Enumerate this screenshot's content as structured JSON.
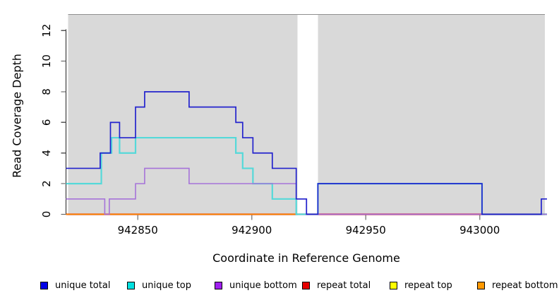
{
  "chart_data": {
    "type": "line",
    "subtype": "step-coverage",
    "title": "",
    "xlabel": "Coordinate in Reference Genome",
    "ylabel": "Read Coverage Depth",
    "xlim": [
      942818.5,
      943029.5
    ],
    "ylim": [
      0,
      13.3
    ],
    "x_ticks": [
      942850,
      942900,
      942950,
      943000
    ],
    "y_ticks": [
      0,
      2,
      4,
      6,
      8,
      10,
      12
    ],
    "grid": false,
    "legend_position": "bottom",
    "background": {
      "fill": "#d9d9d9",
      "top_value": 13.05,
      "border_color": "#8f8f8f",
      "regions": [
        [
          942819.5,
          942920
        ],
        [
          942929,
          943028.5
        ]
      ]
    },
    "series": [
      {
        "name": "unique total",
        "legend_color": "#0000e6",
        "line_color": "#2323cd",
        "line_width": 1.7,
        "steps": [
          [
            942818.5,
            3
          ],
          [
            942833.5,
            4
          ],
          [
            942838,
            6
          ],
          [
            942842,
            5
          ],
          [
            942849,
            7
          ],
          [
            942853,
            8
          ],
          [
            942872.5,
            7
          ],
          [
            942893,
            6
          ],
          [
            942896,
            5
          ],
          [
            942900.5,
            4
          ],
          [
            942909,
            3
          ],
          [
            942919.5,
            1
          ],
          [
            942924,
            0
          ],
          [
            942929,
            2
          ],
          [
            943001,
            0
          ],
          [
            943027,
            1
          ]
        ],
        "end": 943029.5
      },
      {
        "name": "unique top",
        "legend_color": "#00e0e0",
        "line_color": "#55d9d9",
        "line_width": 2.2,
        "steps": [
          [
            942818.5,
            2
          ],
          [
            942834,
            4
          ],
          [
            942838.5,
            5
          ],
          [
            942842,
            4
          ],
          [
            942849,
            5
          ],
          [
            942893,
            4
          ],
          [
            942896,
            3
          ],
          [
            942900.5,
            2
          ],
          [
            942909,
            1
          ],
          [
            942919.5,
            0
          ],
          [
            942929,
            2
          ],
          [
            943001,
            0
          ]
        ],
        "end": 943029.5
      },
      {
        "name": "unique bottom",
        "legend_color": "#a020f0",
        "line_color": "#a673d9",
        "line_width": 1.6,
        "steps": [
          [
            942818.5,
            1
          ],
          [
            942835.5,
            0
          ],
          [
            942837.5,
            1
          ],
          [
            942849,
            2
          ],
          [
            942853,
            3
          ],
          [
            942872.5,
            2
          ],
          [
            942919.5,
            1
          ],
          [
            942924,
            0
          ]
        ],
        "end": 943029.5
      },
      {
        "name": "repeat total",
        "legend_color": "#e60000",
        "line_color": "#dd2038",
        "line_width": 2.2,
        "steps": [
          [
            942818.5,
            0
          ]
        ],
        "end": 943029.5
      },
      {
        "name": "repeat top",
        "legend_color": "#ffff00",
        "line_color": "#f0f000",
        "line_width": 1.4,
        "steps": [
          [
            942818.5,
            0
          ]
        ],
        "end": 943029.5
      },
      {
        "name": "repeat bottom",
        "legend_color": "#ff9900",
        "line_color": "#ff8c00",
        "line_width": 1.7,
        "steps": [
          [
            942818.5,
            0
          ]
        ],
        "end": 942920
      }
    ],
    "draw_order": [
      "repeat top",
      "repeat total",
      "repeat bottom",
      "unique top",
      "unique bottom",
      "unique total"
    ]
  }
}
